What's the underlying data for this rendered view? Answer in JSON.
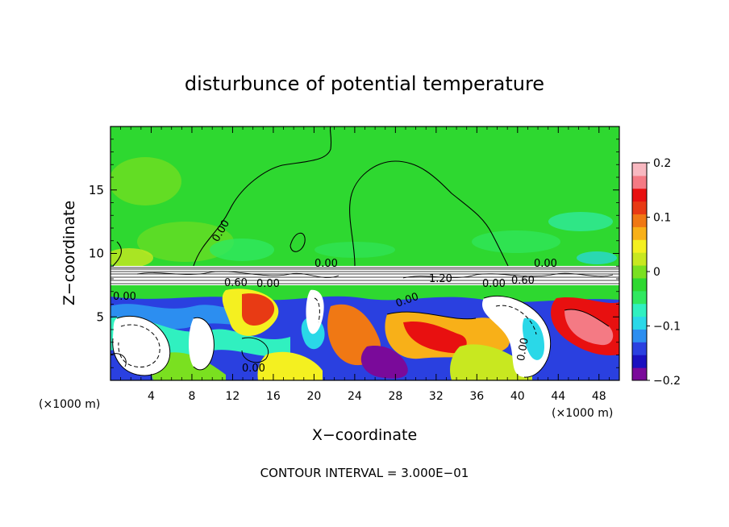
{
  "chart_data": {
    "type": "heatmap",
    "title": "disturbunce of potential temperature",
    "xlabel": "X−coordinate",
    "ylabel": "Z−coordinate",
    "x_unit_left": "(×1000 m)",
    "x_unit_right": "(×1000 m)",
    "xlim": [
      0,
      50
    ],
    "ylim": [
      0,
      20
    ],
    "x_ticks": [
      4,
      8,
      12,
      16,
      20,
      24,
      28,
      32,
      36,
      40,
      44,
      48
    ],
    "x_tick_labels": [
      "4",
      "8",
      "12",
      "16",
      "20",
      "24",
      "28",
      "32",
      "36",
      "40",
      "44",
      "48"
    ],
    "y_ticks": [
      5,
      10,
      15
    ],
    "y_tick_labels": [
      "5",
      "10",
      "15"
    ],
    "colorbar": {
      "range": [
        -0.2,
        0.2
      ],
      "ticks": [
        0.2,
        0.1,
        0,
        -0.1,
        -0.2
      ],
      "tick_labels": [
        "0.2",
        "0.1",
        "0",
        "−0.1",
        "−0.2"
      ],
      "colors": [
        "#7a0a9a",
        "#1a10c0",
        "#2a40e0",
        "#2c8ef0",
        "#2ad8e8",
        "#30f0c0",
        "#30e860",
        "#2ed830",
        "#7ae020",
        "#c8e820",
        "#f4f020",
        "#f8b018",
        "#f07814",
        "#e83a14",
        "#e81010",
        "#f47a84",
        "#f8b8c0"
      ]
    },
    "contour_labels": [
      "0.00",
      "0.00",
      "0.00",
      "0.00",
      "0.60",
      "0.00",
      "1.20",
      "0.00",
      "0.60",
      "0.00",
      "0.00",
      "0.00"
    ],
    "footer": "CONTOUR INTERVAL = 3.000E−01"
  }
}
